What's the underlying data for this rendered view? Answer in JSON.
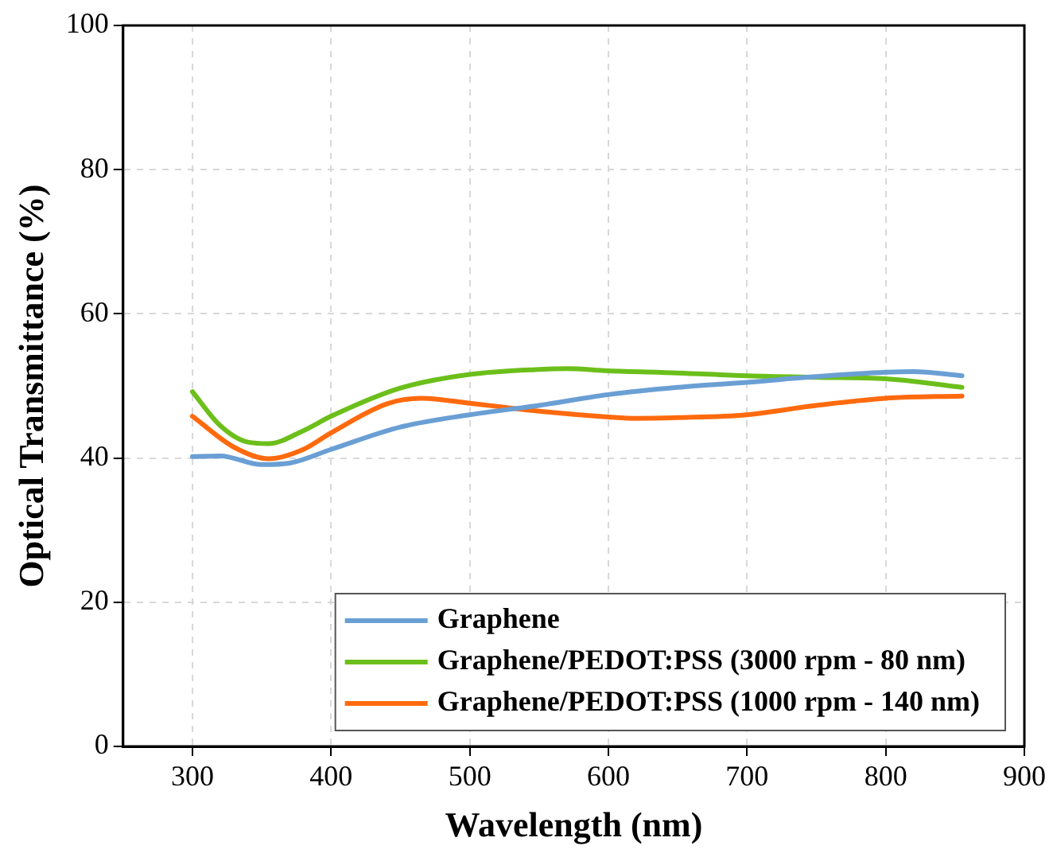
{
  "chart_data": {
    "type": "line",
    "xlabel": "Wavelength (nm)",
    "ylabel": "Optical Transmittance (%)",
    "xlim": [
      250,
      900
    ],
    "xticks": [
      300,
      400,
      500,
      600,
      700,
      800,
      900
    ],
    "ylim": [
      0,
      100
    ],
    "yticks": [
      0,
      20,
      40,
      60,
      80,
      100
    ],
    "grid": true,
    "legend": "bottom right",
    "marker": "none",
    "line_style": "solid",
    "series": [
      {
        "name": "Graphene",
        "color": "#6a9fd4",
        "x": [
          300,
          320,
          350,
          370,
          400,
          450,
          500,
          550,
          600,
          650,
          700,
          750,
          800,
          820,
          855
        ],
        "values": [
          40.2,
          40.3,
          39.1,
          39.3,
          41.2,
          44.3,
          46.0,
          47.3,
          48.8,
          49.8,
          50.5,
          51.3,
          51.9,
          52.0,
          51.4
        ]
      },
      {
        "name": "Graphene/PEDOT:PSS (3000 rpm - 80 nm)",
        "color": "#6cbf1a",
        "x": [
          300,
          320,
          340,
          355,
          380,
          400,
          450,
          500,
          550,
          570,
          600,
          650,
          700,
          750,
          800,
          855
        ],
        "values": [
          49.2,
          44.5,
          42.2,
          42.0,
          43.8,
          45.8,
          49.7,
          51.6,
          52.3,
          52.4,
          52.1,
          51.8,
          51.4,
          51.2,
          51.0,
          49.8
        ]
      },
      {
        "name": "Graphene/PEDOT:PSS (1000 rpm - 140 nm)",
        "color": "#ff6a0e",
        "x": [
          300,
          330,
          355,
          380,
          400,
          440,
          465,
          500,
          550,
          600,
          620,
          650,
          700,
          750,
          800,
          855
        ],
        "values": [
          45.8,
          41.5,
          39.9,
          41.2,
          43.5,
          47.5,
          48.3,
          47.6,
          46.5,
          45.7,
          45.5,
          45.6,
          46.0,
          47.3,
          48.3,
          48.6
        ]
      }
    ]
  }
}
